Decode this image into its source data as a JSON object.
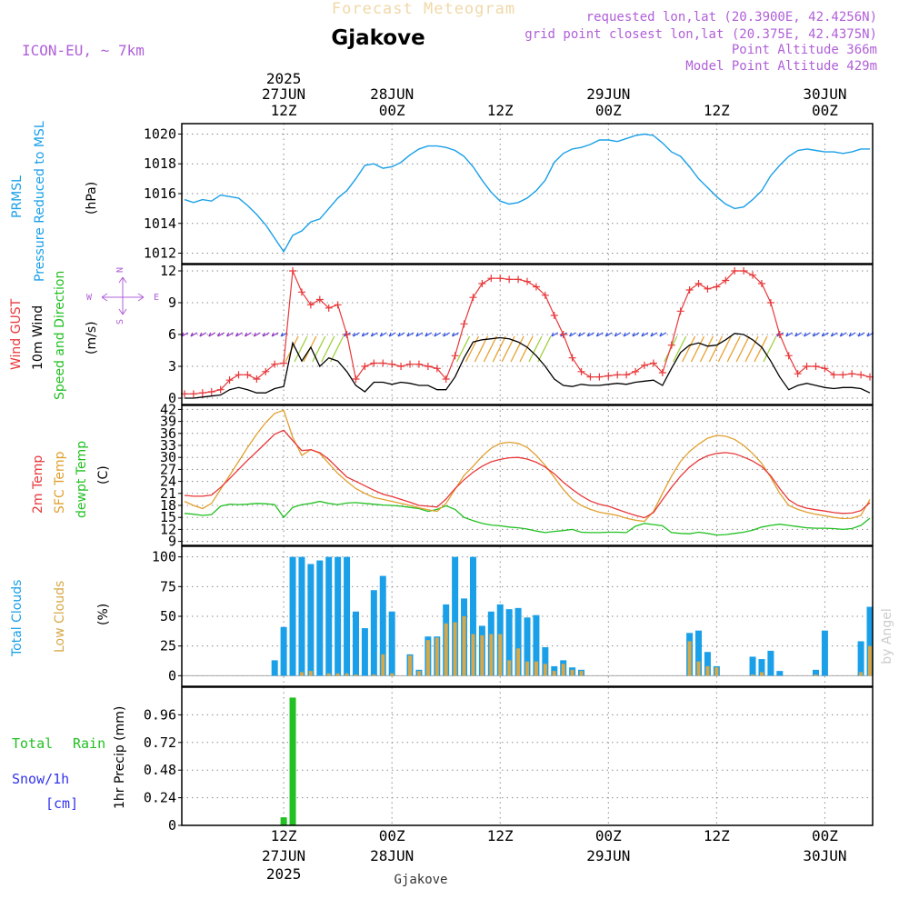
{
  "header": {
    "super_title": "Forecast Meteogram",
    "location": "Gjakove",
    "model": "ICON-EU, ~ 7km",
    "requested": "requested lon,lat (20.3900E, 42.4256N)",
    "grid_point": "grid point closest lon,lat (20.375E, 42.4375N)",
    "point_alt": "Point Altitude 366m",
    "model_alt": "Model Point Altitude 429m",
    "watermark": "by Angel",
    "footer_location": "Gjakove"
  },
  "colors": {
    "pressure": "#1aa0e8",
    "gust": "#e8383a",
    "wind": "#000000",
    "temp": "#e8383a",
    "sfc_temp": "#e0a030",
    "dewpt": "#22c022",
    "total_clouds": "#1aa0e8",
    "low_clouds": "#d8a848",
    "rain": "#22c022",
    "snow": "#3333ee",
    "magenta": "#b060d8"
  },
  "time_axis": {
    "top_labels": [
      {
        "t": 0,
        "l1": "2025",
        "l2": "27JUN",
        "l3": "12Z"
      },
      {
        "t": 12,
        "l1": "",
        "l2": "28JUN",
        "l3": "00Z"
      },
      {
        "t": 24,
        "l1": "",
        "l2": "",
        "l3": "12Z"
      },
      {
        "t": 36,
        "l1": "",
        "l2": "29JUN",
        "l3": "00Z"
      },
      {
        "t": 48,
        "l1": "",
        "l2": "",
        "l3": "12Z"
      },
      {
        "t": 60,
        "l1": "",
        "l2": "30JUN",
        "l3": "00Z"
      }
    ],
    "bottom_labels": [
      {
        "t": 0,
        "l1": "12Z",
        "l2": "27JUN",
        "l3": "2025"
      },
      {
        "t": 12,
        "l1": "00Z",
        "l2": "28JUN",
        "l3": ""
      },
      {
        "t": 24,
        "l1": "12Z",
        "l2": "",
        "l3": ""
      },
      {
        "t": 36,
        "l1": "00Z",
        "l2": "29JUN",
        "l3": ""
      },
      {
        "t": 48,
        "l1": "12Z",
        "l2": "",
        "l3": ""
      },
      {
        "t": 60,
        "l1": "00Z",
        "l2": "30JUN",
        "l3": ""
      }
    ]
  },
  "panel_labels": {
    "pressure": [
      "PRMSL",
      "Pressure Reduced to MSL",
      "(hPa)"
    ],
    "wind": [
      "Wind GUST",
      "10m Wind",
      "Speed and Direction",
      "(m/s)"
    ],
    "compass": {
      "n": "N",
      "s": "S",
      "w": "W",
      "e": "E"
    },
    "temp": [
      "2m Temp",
      "SFC Temp",
      "dewpt Temp",
      "(C)"
    ],
    "clouds": [
      "Total Clouds",
      "Low Clouds",
      "(%)"
    ],
    "precip": [
      "Total",
      "Rain",
      "Snow/1h",
      "[cm]",
      "1hr Precip (mm)"
    ]
  },
  "chart_data": [
    {
      "type": "line",
      "name": "pressure",
      "ylabel": "Pressure Reduced to MSL (hPa)",
      "ylim": [
        1011.3,
        1020.7
      ],
      "yticks": [
        1012,
        1014,
        1016,
        1018,
        1020
      ],
      "x_hours_from_27jun12z": [
        -11,
        -10,
        -9,
        -8,
        -7,
        -6,
        -5,
        -4,
        -3,
        -2,
        -1,
        0,
        1,
        2,
        3,
        4,
        5,
        6,
        7,
        8,
        9,
        10,
        11,
        12,
        13,
        14,
        15,
        16,
        17,
        18,
        19,
        20,
        21,
        22,
        23,
        24,
        25,
        26,
        27,
        28,
        29,
        30,
        31,
        32,
        33,
        34,
        35,
        36,
        37,
        38,
        39,
        40,
        41,
        42,
        43,
        44,
        45,
        46,
        47,
        48,
        49,
        50,
        51,
        52,
        53,
        54,
        55,
        56,
        57,
        58,
        59,
        60,
        61,
        62,
        63,
        64,
        65
      ],
      "values": [
        1015.6,
        1015.4,
        1015.6,
        1015.5,
        1015.9,
        1015.8,
        1015.7,
        1015.2,
        1014.6,
        1013.9,
        1013.0,
        1012.1,
        1013.2,
        1013.5,
        1014.1,
        1014.3,
        1015.0,
        1015.7,
        1016.2,
        1017.0,
        1017.9,
        1018.0,
        1017.7,
        1017.8,
        1018.1,
        1018.6,
        1019.0,
        1019.2,
        1019.2,
        1019.1,
        1018.9,
        1018.5,
        1017.8,
        1016.9,
        1016.1,
        1015.5,
        1015.3,
        1015.4,
        1015.7,
        1016.2,
        1016.9,
        1018.1,
        1018.7,
        1019.0,
        1019.1,
        1019.3,
        1019.6,
        1019.6,
        1019.5,
        1019.7,
        1019.9,
        1020.0,
        1019.9,
        1019.4,
        1018.8,
        1018.5,
        1017.8,
        1017.0,
        1016.4,
        1015.8,
        1015.3,
        1015.0,
        1015.1,
        1015.6,
        1016.2,
        1017.2,
        1017.9,
        1018.5,
        1018.9,
        1019.0,
        1018.9,
        1018.8,
        1018.8,
        1018.7,
        1018.8,
        1019.0,
        1019.0
      ]
    },
    {
      "type": "line",
      "name": "wind",
      "ylabel": "(m/s)",
      "ylim": [
        -0.6,
        12.6
      ],
      "yticks": [
        0,
        3,
        6,
        9,
        12
      ],
      "x_hours_from_27jun12z": [
        -11,
        -10,
        -9,
        -8,
        -7,
        -6,
        -5,
        -4,
        -3,
        -2,
        -1,
        0,
        1,
        2,
        3,
        4,
        5,
        6,
        7,
        8,
        9,
        10,
        11,
        12,
        13,
        14,
        15,
        16,
        17,
        18,
        19,
        20,
        21,
        22,
        23,
        24,
        25,
        26,
        27,
        28,
        29,
        30,
        31,
        32,
        33,
        34,
        35,
        36,
        37,
        38,
        39,
        40,
        41,
        42,
        43,
        44,
        45,
        46,
        47,
        48,
        49,
        50,
        51,
        52,
        53,
        54,
        55,
        56,
        57,
        58,
        59,
        60,
        61,
        62,
        63,
        64,
        65
      ],
      "series": [
        {
          "name": "Wind GUST",
          "values": [
            0.4,
            0.4,
            0.5,
            0.6,
            0.8,
            1.7,
            2.2,
            2.2,
            1.8,
            2.5,
            3.2,
            3.3,
            12.0,
            10.0,
            8.8,
            9.3,
            8.5,
            8.8,
            6.0,
            1.8,
            3.0,
            3.3,
            3.3,
            3.2,
            3.0,
            3.2,
            3.2,
            3.0,
            2.8,
            1.8,
            4.0,
            7.0,
            9.5,
            10.8,
            11.3,
            11.3,
            11.2,
            11.2,
            11.0,
            10.5,
            9.7,
            7.8,
            6.0,
            3.8,
            2.5,
            2.0,
            2.0,
            2.1,
            2.2,
            2.2,
            2.5,
            3.1,
            3.3,
            2.4,
            5.0,
            8.2,
            10.2,
            10.8,
            10.3,
            10.5,
            11.1,
            12.0,
            12.0,
            11.6,
            10.8,
            9.0,
            6.0,
            4.0,
            2.3,
            3.0,
            3.0,
            2.8,
            2.2,
            2.2,
            2.3,
            2.2,
            2.0
          ]
        },
        {
          "name": "10m Wind",
          "values": [
            0,
            0,
            0.1,
            0.2,
            0.3,
            0.8,
            1.0,
            0.8,
            0.5,
            0.5,
            0.9,
            1.1,
            5.2,
            3.5,
            4.8,
            3.0,
            3.8,
            3.5,
            2.5,
            1.2,
            0.6,
            1.5,
            1.5,
            1.3,
            1.5,
            1.4,
            1.2,
            1.2,
            0.8,
            0.8,
            2.0,
            3.8,
            5.3,
            5.5,
            5.6,
            5.7,
            5.6,
            5.3,
            4.8,
            4.0,
            3.0,
            1.8,
            1.2,
            1.1,
            1.3,
            1.2,
            1.2,
            1.3,
            1.4,
            1.3,
            1.5,
            1.6,
            1.7,
            1.2,
            2.8,
            4.3,
            5.0,
            5.2,
            4.9,
            5.0,
            5.5,
            6.1,
            6.0,
            5.5,
            4.8,
            3.5,
            2.0,
            0.8,
            1.2,
            1.4,
            1.2,
            1.0,
            0.9,
            1.0,
            1.0,
            0.9,
            0.5
          ]
        }
      ]
    },
    {
      "type": "line",
      "name": "temperature",
      "ylabel": "(C)",
      "ylim": [
        8.0,
        43.0
      ],
      "yticks": [
        9,
        12,
        15,
        18,
        21,
        24,
        27,
        30,
        33,
        36,
        39,
        42
      ],
      "x_hours_from_27jun12z": [
        -11,
        -10,
        -9,
        -8,
        -7,
        -6,
        -5,
        -4,
        -3,
        -2,
        -1,
        0,
        1,
        2,
        3,
        4,
        5,
        6,
        7,
        8,
        9,
        10,
        11,
        12,
        13,
        14,
        15,
        16,
        17,
        18,
        19,
        20,
        21,
        22,
        23,
        24,
        25,
        26,
        27,
        28,
        29,
        30,
        31,
        32,
        33,
        34,
        35,
        36,
        37,
        38,
        39,
        40,
        41,
        42,
        43,
        44,
        45,
        46,
        47,
        48,
        49,
        50,
        51,
        52,
        53,
        54,
        55,
        56,
        57,
        58,
        59,
        60,
        61,
        62,
        63,
        64,
        65
      ],
      "series": [
        {
          "name": "2m Temp",
          "values": [
            20.5,
            20.3,
            20.3,
            20.6,
            22.5,
            24.7,
            27.0,
            29.3,
            31.4,
            33.6,
            35.8,
            36.8,
            34.2,
            31.7,
            31.9,
            31.2,
            29.5,
            27.3,
            25.1,
            24.0,
            22.9,
            21.8,
            20.8,
            20.2,
            19.5,
            18.8,
            18.0,
            17.8,
            17.6,
            19.6,
            22.2,
            24.4,
            26.3,
            27.8,
            28.9,
            29.5,
            29.9,
            30.0,
            29.6,
            28.8,
            27.6,
            25.9,
            23.8,
            22.0,
            20.4,
            19.1,
            18.3,
            17.8,
            17.0,
            16.2,
            15.5,
            14.9,
            16.2,
            19.4,
            22.5,
            25.3,
            27.6,
            29.3,
            30.4,
            31.0,
            31.2,
            30.9,
            30.1,
            29.1,
            27.7,
            25.4,
            22.2,
            19.4,
            18.0,
            17.3,
            16.9,
            16.6,
            16.2,
            16.0,
            16.1,
            16.7,
            18.7
          ]
        },
        {
          "name": "SFC Temp",
          "values": [
            19.0,
            18.0,
            17.2,
            18.5,
            22.0,
            25.5,
            29.0,
            32.5,
            35.8,
            38.7,
            41.0,
            41.8,
            35.0,
            30.5,
            32.0,
            31.0,
            28.5,
            26.0,
            24.0,
            22.2,
            21.0,
            20.0,
            19.5,
            19.0,
            18.5,
            18.0,
            17.4,
            16.9,
            16.5,
            18.5,
            22.0,
            25.5,
            27.8,
            30.3,
            32.3,
            33.5,
            33.8,
            33.5,
            32.5,
            30.5,
            28.0,
            25.0,
            22.0,
            19.5,
            18.0,
            17.0,
            16.3,
            15.9,
            15.5,
            14.8,
            14.3,
            14.0,
            16.5,
            21.0,
            25.3,
            29.0,
            31.5,
            33.3,
            34.8,
            35.5,
            35.3,
            34.5,
            33.0,
            31.0,
            28.5,
            25.0,
            21.0,
            18.0,
            17.0,
            16.3,
            15.8,
            15.4,
            15.0,
            14.7,
            14.8,
            15.5,
            19.5
          ]
        },
        {
          "name": "dewpt Temp",
          "values": [
            16.0,
            15.8,
            15.5,
            15.7,
            17.8,
            18.3,
            18.2,
            18.3,
            18.5,
            18.4,
            18.2,
            15.0,
            17.5,
            18.2,
            18.5,
            19.0,
            18.5,
            18.2,
            18.6,
            18.7,
            18.5,
            18.3,
            18.1,
            18.0,
            17.8,
            17.5,
            17.2,
            16.5,
            17.0,
            17.9,
            17.0,
            15.0,
            14.2,
            13.5,
            13.1,
            12.9,
            12.6,
            12.4,
            12.1,
            11.6,
            11.2,
            11.5,
            11.7,
            12.0,
            11.3,
            11.2,
            11.2,
            11.3,
            11.3,
            11.2,
            12.8,
            13.5,
            13.2,
            12.9,
            11.2,
            11.0,
            10.9,
            11.3,
            11.0,
            10.6,
            10.7,
            11.0,
            11.3,
            11.8,
            12.6,
            13.0,
            13.3,
            13.0,
            12.7,
            12.4,
            12.3,
            12.3,
            12.2,
            12.0,
            12.2,
            13.0,
            14.8
          ]
        }
      ]
    },
    {
      "type": "bar",
      "name": "clouds",
      "ylabel": "(%)",
      "ylim": [
        -8.9,
        108.9
      ],
      "yticks": [
        0,
        25,
        50,
        75,
        100
      ],
      "x_hours_from_27jun12z": [
        -11,
        -10,
        -9,
        -8,
        -7,
        -6,
        -5,
        -4,
        -3,
        -2,
        -1,
        0,
        1,
        2,
        3,
        4,
        5,
        6,
        7,
        8,
        9,
        10,
        11,
        12,
        13,
        14,
        15,
        16,
        17,
        18,
        19,
        20,
        21,
        22,
        23,
        24,
        25,
        26,
        27,
        28,
        29,
        30,
        31,
        32,
        33,
        34,
        35,
        36,
        37,
        38,
        39,
        40,
        41,
        42,
        43,
        44,
        45,
        46,
        47,
        48,
        49,
        50,
        51,
        52,
        53,
        54,
        55,
        56,
        57,
        58,
        59,
        60,
        61,
        62,
        63,
        64,
        65
      ],
      "series": [
        {
          "name": "Total Clouds",
          "values": [
            0,
            0,
            0,
            0,
            0,
            0,
            0,
            0,
            0,
            0,
            13,
            41,
            100,
            100,
            94,
            97,
            100,
            100,
            100,
            54,
            40,
            72,
            84,
            54,
            0,
            18,
            5,
            33,
            33,
            60,
            100,
            65,
            100,
            42,
            54,
            60,
            56,
            57,
            49,
            51,
            24,
            8,
            13,
            7,
            5,
            0,
            0,
            0,
            0,
            0,
            0,
            0,
            0,
            0,
            0,
            0,
            36,
            38,
            20,
            8,
            0,
            0,
            0,
            16,
            14,
            21,
            4,
            0,
            0,
            0,
            5,
            38,
            0,
            0,
            0,
            29,
            58
          ]
        },
        {
          "name": "Low Clouds",
          "values": [
            0,
            0,
            0,
            0,
            0,
            0,
            0,
            0,
            0,
            0,
            0,
            0,
            0,
            3,
            4,
            0,
            2,
            2,
            2,
            1,
            0,
            1,
            18,
            2,
            0,
            17,
            4,
            30,
            32,
            44,
            45,
            50,
            35,
            34,
            35,
            35,
            13,
            23,
            12,
            12,
            10,
            4,
            10,
            5,
            4,
            0,
            0,
            0,
            0,
            0,
            0,
            0,
            0,
            0,
            0,
            0,
            29,
            12,
            8,
            7,
            0,
            0,
            0,
            1,
            3,
            0,
            0,
            0,
            0,
            0,
            1,
            0,
            0,
            0,
            0,
            3,
            25
          ]
        }
      ]
    },
    {
      "type": "bar",
      "name": "precipitation",
      "ylabel": "1hr Precip (mm)",
      "ylim": [
        0,
        1.2
      ],
      "yticks": [
        0,
        0.24,
        0.48,
        0.72,
        0.96
      ],
      "x_hours_from_27jun12z": [
        0,
        1
      ],
      "series": [
        {
          "name": "Total Rain",
          "values": [
            0.07,
            1.11
          ]
        },
        {
          "name": "Snow/1h",
          "values": [
            0,
            0
          ]
        }
      ]
    }
  ]
}
